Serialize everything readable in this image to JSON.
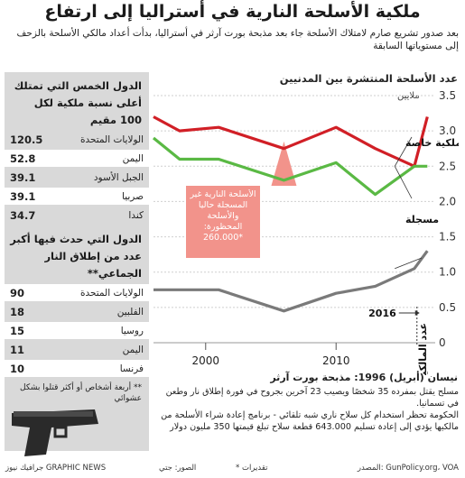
{
  "header": {
    "title": "ملكية الأسلحة النارية في أستراليا إلى ارتفاع",
    "subtitle": "بعد صدور تشريع صارم لامتلاك الأسلحة جاء بعد مذبحة بورت آرثر في أستراليا، بدأت أعداد مالكي الأسلحة بالزحف إلى مستوياتها السابقة"
  },
  "sidebar": {
    "ownership": {
      "heading": "الدول الخمس التي تمتلك أعلى نسبة ملكية لكل 100 مقيم",
      "rows": [
        {
          "country": "الولايات المتحدة",
          "value": "120.5"
        },
        {
          "country": "اليمن",
          "value": "52.8"
        },
        {
          "country": "الجبل الأسود",
          "value": "39.1"
        },
        {
          "country": "صربيا",
          "value": "39.1"
        },
        {
          "country": "كندا",
          "value": "34.7"
        }
      ]
    },
    "shootings": {
      "heading": "الدول التي حدث فيها أكبر عدد من إطلاق النار الجماعي**",
      "rows": [
        {
          "country": "الولايات المتحدة",
          "value": "90"
        },
        {
          "country": "الفلبين",
          "value": "18"
        },
        {
          "country": "روسيا",
          "value": "15"
        },
        {
          "country": "اليمن",
          "value": "11"
        },
        {
          "country": "فرنسا",
          "value": "10"
        }
      ],
      "footnote": "** أربعة أشخاص أو أكثر قتلوا بشكل عشوائي"
    }
  },
  "chart_data": {
    "type": "line",
    "title": "عدد الأسلحة المنتشرة بين المدنيين",
    "unit_label": "ملايين",
    "x": [
      1996,
      1998,
      2001,
      2006,
      2010,
      2013,
      2016,
      2017
    ],
    "x_ticks": [
      "2000",
      "2010"
    ],
    "ylim": [
      0,
      3.5
    ],
    "y_ticks": [
      "0",
      "0.5",
      "1.0",
      "1.5",
      "2.0",
      "2.5",
      "3.0",
      "3.5"
    ],
    "series": [
      {
        "name": "ملكية خاصة",
        "color": "#d11f26",
        "values": [
          3.2,
          3.0,
          3.05,
          2.75,
          3.05,
          2.75,
          2.5,
          3.2
        ]
      },
      {
        "name": "مسجلة",
        "color": "#5ab944",
        "values": [
          2.9,
          2.6,
          2.6,
          2.3,
          2.55,
          2.1,
          2.5,
          2.5
        ]
      },
      {
        "name": "عدد المالكين المرخص لهم",
        "color": "#7a7a7a",
        "values": [
          0.75,
          0.75,
          0.75,
          0.45,
          0.7,
          0.8,
          1.05,
          1.3
        ]
      }
    ],
    "callout": {
      "text": "الأسلحة النارية غير المسجلة حاليا والأسلحة المحظورة: *260.000",
      "pointer_year": 2006
    },
    "marker": {
      "label": "2016"
    }
  },
  "event": {
    "title": "نيسان (أبريل) 1996: مذبحة بورت آرثر",
    "paragraphs": [
      "مسلح يقتل بمفرده 35 شخصًا ويصيب 23 آخرين بجروح في فورة إطلاق نار وطعن في تسمانيا.",
      "الحكومة تحظر استخدام كل سلاح ناري شبه تلقائي - برنامج إعادة شراء الأسلحة من مالكيها يؤدي إلى إعادة تسليم 643.000 قطعة سلاح تبلغ قيمتها 350 مليون دولار"
    ]
  },
  "footer": {
    "source": "المصدر: GunPolicy.org، VOA",
    "note": "* تقديرات",
    "photo": "الصور: جتي",
    "credit": "جرافيك نيوز GRAPHIC NEWS"
  }
}
